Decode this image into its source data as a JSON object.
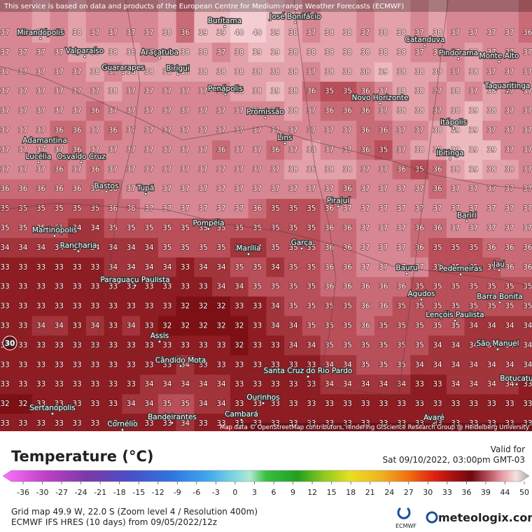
{
  "header": {
    "disclaimer": "This service is based on data and products of the European Centre for Medium-range Weather Forecasts (ECMWF)"
  },
  "map": {
    "rows": [
      [
        37,
        37,
        38,
        37,
        38,
        37,
        37,
        37,
        37,
        38,
        36,
        39,
        39,
        40,
        40,
        39,
        38,
        37,
        38,
        38,
        37,
        38,
        38,
        37,
        38,
        37,
        37,
        37,
        37,
        36
      ],
      [
        37,
        37,
        37,
        37,
        38,
        38,
        38,
        38,
        37,
        38,
        38,
        38,
        37,
        38,
        39,
        39,
        38,
        38,
        38,
        38,
        38,
        38,
        38,
        37,
        37,
        37,
        38,
        37,
        37,
        37
      ],
      [
        37,
        37,
        37,
        37,
        37,
        38,
        37,
        38,
        38,
        38,
        38,
        38,
        38,
        38,
        38,
        38,
        38,
        37,
        38,
        38,
        38,
        39,
        38,
        38,
        38,
        37,
        38,
        37,
        37,
        37
      ],
      [
        37,
        37,
        37,
        37,
        37,
        37,
        38,
        37,
        37,
        37,
        37,
        37,
        37,
        38,
        38,
        39,
        38,
        36,
        35,
        35,
        36,
        37,
        38,
        38,
        37,
        38,
        37,
        38,
        37,
        37
      ],
      [
        37,
        37,
        37,
        37,
        37,
        36,
        37,
        37,
        37,
        37,
        37,
        37,
        37,
        37,
        37,
        37,
        38,
        37,
        36,
        36,
        36,
        37,
        38,
        38,
        37,
        38,
        39,
        38,
        37,
        37
      ],
      [
        37,
        37,
        37,
        36,
        36,
        37,
        36,
        37,
        37,
        37,
        37,
        37,
        37,
        37,
        37,
        37,
        37,
        37,
        37,
        37,
        36,
        36,
        37,
        37,
        38,
        39,
        39,
        37,
        37,
        37
      ],
      [
        37,
        37,
        37,
        37,
        36,
        37,
        37,
        37,
        37,
        37,
        37,
        37,
        36,
        37,
        37,
        36,
        37,
        38,
        37,
        37,
        36,
        35,
        37,
        38,
        38,
        39,
        39,
        39,
        37,
        37
      ],
      [
        37,
        37,
        37,
        36,
        37,
        36,
        37,
        37,
        37,
        37,
        37,
        37,
        37,
        37,
        37,
        37,
        38,
        38,
        38,
        38,
        37,
        37,
        36,
        35,
        36,
        38,
        39,
        38,
        38,
        37
      ],
      [
        36,
        36,
        36,
        36,
        36,
        36,
        36,
        37,
        37,
        37,
        37,
        37,
        37,
        37,
        37,
        37,
        37,
        37,
        37,
        36,
        37,
        37,
        37,
        37,
        36,
        37,
        37,
        37,
        37,
        37
      ],
      [
        35,
        35,
        35,
        35,
        35,
        35,
        36,
        36,
        37,
        37,
        37,
        37,
        37,
        37,
        36,
        35,
        35,
        35,
        36,
        37,
        37,
        37,
        37,
        37,
        37,
        37,
        37,
        37,
        37,
        37
      ],
      [
        35,
        35,
        35,
        35,
        34,
        34,
        35,
        35,
        35,
        35,
        35,
        35,
        35,
        35,
        35,
        35,
        35,
        35,
        36,
        36,
        37,
        37,
        37,
        36,
        36,
        37,
        37,
        37,
        37,
        37
      ],
      [
        34,
        34,
        34,
        34,
        34,
        34,
        34,
        34,
        34,
        35,
        35,
        35,
        35,
        34,
        34,
        35,
        35,
        35,
        36,
        36,
        37,
        37,
        37,
        36,
        35,
        35,
        35,
        36,
        36,
        36
      ],
      [
        33,
        33,
        33,
        33,
        33,
        33,
        34,
        34,
        34,
        34,
        33,
        34,
        34,
        35,
        35,
        34,
        35,
        35,
        36,
        36,
        37,
        37,
        37,
        37,
        35,
        35,
        35,
        35,
        36,
        36
      ],
      [
        33,
        33,
        33,
        33,
        33,
        33,
        33,
        33,
        33,
        33,
        33,
        33,
        34,
        34,
        35,
        35,
        35,
        35,
        36,
        36,
        36,
        36,
        36,
        35,
        35,
        35,
        35,
        35,
        35,
        35
      ],
      [
        33,
        33,
        33,
        33,
        33,
        33,
        33,
        33,
        33,
        33,
        32,
        32,
        32,
        33,
        33,
        34,
        35,
        35,
        35,
        35,
        36,
        36,
        35,
        35,
        35,
        35,
        35,
        35,
        35,
        35
      ],
      [
        33,
        33,
        34,
        34,
        33,
        34,
        33,
        34,
        33,
        32,
        32,
        32,
        32,
        32,
        33,
        34,
        34,
        35,
        35,
        35,
        36,
        35,
        35,
        35,
        35,
        35,
        34,
        34,
        34,
        34
      ],
      [
        33,
        33,
        33,
        33,
        33,
        33,
        33,
        33,
        33,
        33,
        33,
        33,
        33,
        32,
        33,
        33,
        34,
        34,
        35,
        35,
        35,
        35,
        35,
        35,
        34,
        34,
        34,
        34,
        34,
        34
      ],
      [
        33,
        33,
        33,
        33,
        33,
        33,
        33,
        33,
        33,
        33,
        34,
        33,
        33,
        33,
        33,
        33,
        33,
        33,
        34,
        34,
        35,
        35,
        35,
        34,
        34,
        34,
        34,
        34,
        34,
        34
      ],
      [
        33,
        33,
        33,
        33,
        33,
        33,
        33,
        33,
        34,
        34,
        34,
        34,
        34,
        33,
        33,
        33,
        33,
        33,
        34,
        34,
        34,
        34,
        34,
        33,
        33,
        34,
        34,
        34,
        34,
        33
      ],
      [
        32,
        32,
        33,
        33,
        33,
        33,
        33,
        34,
        34,
        35,
        35,
        34,
        34,
        33,
        33,
        33,
        33,
        33,
        33,
        33,
        33,
        33,
        33,
        33,
        33,
        33,
        33,
        33,
        33,
        33
      ],
      [
        33,
        33,
        33,
        33,
        33,
        33,
        33,
        33,
        33,
        33,
        34,
        33,
        33,
        33,
        33,
        33,
        33,
        33,
        33,
        33,
        33,
        33,
        33,
        33,
        33,
        33,
        33,
        33,
        33,
        33
      ]
    ],
    "cities": [
      "Mirandópolis",
      "Buritama",
      "José Bonifácio",
      "Catanduva",
      "Pindorama",
      "Monte Alto",
      "Valparaíso",
      "Araçatuba",
      "Guararapes",
      "Birigui",
      "Penápolis",
      "Novo Horizonte",
      "Taquaritinga",
      "Promissão",
      "Itápolis",
      "Lins",
      "Adamantina",
      "Lucélia",
      "Osvaldo Cruz",
      "Ibitinga",
      "Bastos",
      "Tupã",
      "Pirajuí",
      "Bariri",
      "Pompéia",
      "Martinópolis",
      "Rancharia",
      "Marília",
      "Garça",
      "Bauru",
      "Pederneiras",
      "Jaú",
      "Paraguaçu Paulista",
      "Agudos",
      "Barra Bonita",
      "Lençóis Paulista",
      "Assis",
      "São Manuel",
      "Cândido Mota",
      "Santa Cruz do Rio Pardo",
      "Botucatu",
      "Ourinhos",
      "Sertanópolis",
      "Bandeirantes",
      "Cambará",
      "Avaré",
      "Cornélio"
    ],
    "contour_labels": [
      30
    ],
    "attribution": "Map data © OpenStreetMap contributors, rendering GIScience Research Group @ Heidelberg University"
  },
  "legend": {
    "title": "Temperature (°C)",
    "ticks": [
      -36,
      -30,
      -27,
      -24,
      -21,
      -18,
      -15,
      -12,
      -9,
      -6,
      -3,
      0,
      3,
      6,
      9,
      12,
      15,
      18,
      21,
      24,
      27,
      30,
      33,
      36,
      39,
      44,
      50
    ]
  },
  "footer": {
    "valid_label": "Valid for",
    "valid_time": "Sat 09/10/2022, 03:00pm GMT-03",
    "grid_info": "Grid map 49.9 W, 22.0 S (Zoom level 4 / Resolution 400m)",
    "model_info": "ECMWF IFS HRES (10 days) from 09/05/2022/12z",
    "ecmwf_logo": "ECMWF",
    "brand": "meteologix.com"
  }
}
